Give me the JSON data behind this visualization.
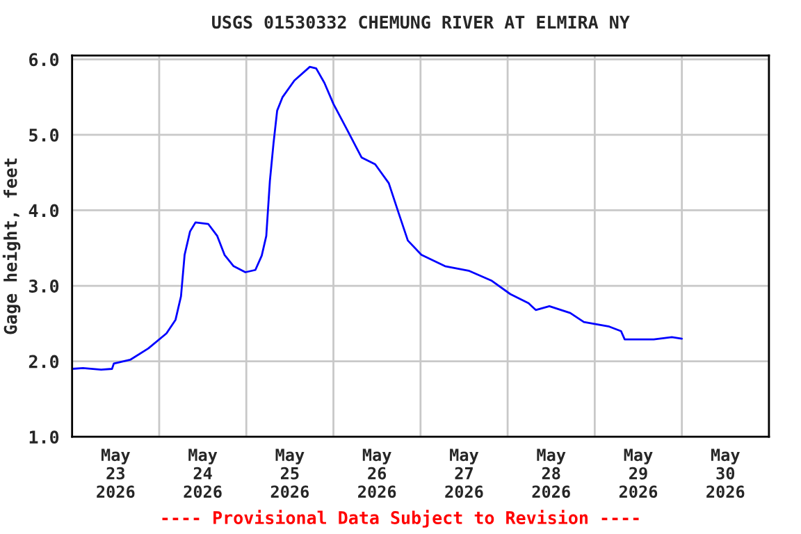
{
  "chart_data": {
    "type": "line",
    "title": "USGS 01530332 CHEMUNG RIVER AT ELMIRA NY",
    "ylabel": "Gage height, feet",
    "annotations": [
      "---- Provisional Data Subject to Revision ----"
    ],
    "grid": true,
    "legend": false,
    "marker": "none",
    "line_style": "solid",
    "xlim": [
      "2026-05-23T00:00",
      "2026-05-31T00:00"
    ],
    "xticks": [
      {
        "value": "2026-05-23T00:00",
        "label": null
      },
      {
        "value": "2026-05-23T12:00",
        "label": "May\n23\n2026"
      },
      {
        "value": "2026-05-24T00:00",
        "label": null
      },
      {
        "value": "2026-05-24T12:00",
        "label": "May\n24\n2026"
      },
      {
        "value": "2026-05-25T00:00",
        "label": null
      },
      {
        "value": "2026-05-25T12:00",
        "label": "May\n25\n2026"
      },
      {
        "value": "2026-05-26T00:00",
        "label": null
      },
      {
        "value": "2026-05-26T12:00",
        "label": "May\n26\n2026"
      },
      {
        "value": "2026-05-27T00:00",
        "label": null
      },
      {
        "value": "2026-05-27T12:00",
        "label": "May\n27\n2026"
      },
      {
        "value": "2026-05-28T00:00",
        "label": null
      },
      {
        "value": "2026-05-28T12:00",
        "label": "May\n28\n2026"
      },
      {
        "value": "2026-05-29T00:00",
        "label": null
      },
      {
        "value": "2026-05-29T12:00",
        "label": "May\n29\n2026"
      },
      {
        "value": "2026-05-30T00:00",
        "label": null
      },
      {
        "value": "2026-05-30T12:00",
        "label": "May\n30\n2026"
      },
      {
        "value": "2026-05-31T00:00",
        "label": null
      }
    ],
    "ylim": [
      1,
      6.05
    ],
    "yticks": [
      {
        "value": 1,
        "label": "1.0"
      },
      {
        "value": 2,
        "label": "2.0"
      },
      {
        "value": 3,
        "label": "3.0"
      },
      {
        "value": 4,
        "label": "4.0"
      },
      {
        "value": 5,
        "label": "5.0"
      },
      {
        "value": 6,
        "label": "6.0"
      }
    ],
    "series": [
      {
        "color": "#0000ff",
        "x": [
          "2026-05-23T00:00",
          "2026-05-23T03:00",
          "2026-05-23T08:00",
          "2026-05-23T11:00",
          "2026-05-23T11:30",
          "2026-05-23T16:00",
          "2026-05-23T21:00",
          "2026-05-24T02:00",
          "2026-05-24T04:30",
          "2026-05-24T06:00",
          "2026-05-24T07:00",
          "2026-05-24T08:30",
          "2026-05-24T10:00",
          "2026-05-24T13:30",
          "2026-05-24T16:00",
          "2026-05-24T18:00",
          "2026-05-24T20:30",
          "2026-05-24T23:45",
          "2026-05-25T02:30",
          "2026-05-25T04:15",
          "2026-05-25T05:30",
          "2026-05-25T06:30",
          "2026-05-25T07:30",
          "2026-05-25T08:30",
          "2026-05-25T10:00",
          "2026-05-25T13:15",
          "2026-05-25T17:30",
          "2026-05-25T19:15",
          "2026-05-25T21:30",
          "2026-05-26T00:00",
          "2026-05-26T03:45",
          "2026-05-26T07:45",
          "2026-05-26T11:30",
          "2026-05-26T15:15",
          "2026-05-26T18:00",
          "2026-05-26T20:30",
          "2026-05-27T00:15",
          "2026-05-27T06:45",
          "2026-05-27T13:15",
          "2026-05-27T19:30",
          "2026-05-28T00:45",
          "2026-05-28T05:45",
          "2026-05-28T07:45",
          "2026-05-28T11:30",
          "2026-05-28T17:15",
          "2026-05-28T21:00",
          "2026-05-29T04:00",
          "2026-05-29T07:15",
          "2026-05-29T08:15",
          "2026-05-29T16:15",
          "2026-05-29T21:15",
          "2026-05-30T00:00"
        ],
        "values": [
          1.9,
          1.91,
          1.89,
          1.9,
          1.97,
          2.02,
          2.17,
          2.37,
          2.55,
          2.86,
          3.41,
          3.72,
          3.84,
          3.82,
          3.66,
          3.41,
          3.26,
          3.18,
          3.21,
          3.4,
          3.66,
          4.39,
          4.89,
          5.32,
          5.5,
          5.72,
          5.9,
          5.88,
          5.69,
          5.41,
          5.07,
          4.7,
          4.61,
          4.36,
          3.96,
          3.6,
          3.41,
          3.26,
          3.2,
          3.07,
          2.89,
          2.77,
          2.68,
          2.73,
          2.64,
          2.52,
          2.46,
          2.4,
          2.29,
          2.29,
          2.32,
          2.3
        ]
      }
    ]
  }
}
